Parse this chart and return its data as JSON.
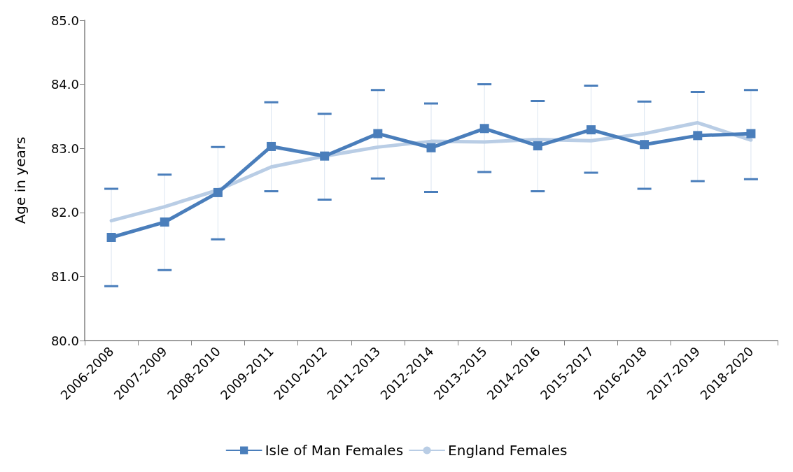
{
  "chart_data": {
    "type": "line",
    "ylabel": "Age in years",
    "categories": [
      "2006-2008",
      "2007-2009",
      "2008-2010",
      "2009-2011",
      "2010-2012",
      "2011-2013",
      "2012-2014",
      "2013-2015",
      "2014-2016",
      "2015-2017",
      "2016-2018",
      "2017-2019",
      "2018-2020"
    ],
    "series": [
      {
        "name": "Isle of Man Females",
        "color": "#4a7ebb",
        "marker": "square",
        "values": [
          81.61,
          81.85,
          82.31,
          83.03,
          82.88,
          83.23,
          83.01,
          83.31,
          83.04,
          83.29,
          83.06,
          83.2,
          83.23
        ],
        "errors": [
          [
            80.85,
            82.37
          ],
          [
            81.1,
            82.59
          ],
          [
            81.58,
            83.02
          ],
          [
            82.33,
            83.72
          ],
          [
            82.2,
            83.54
          ],
          [
            82.53,
            83.91
          ],
          [
            82.32,
            83.7
          ],
          [
            82.63,
            84.0
          ],
          [
            82.33,
            83.74
          ],
          [
            82.62,
            83.98
          ],
          [
            82.37,
            83.73
          ],
          [
            82.49,
            83.88
          ],
          [
            82.52,
            83.91
          ]
        ]
      },
      {
        "name": "England Females",
        "color": "#b9cde5",
        "marker": "none",
        "values": [
          81.87,
          82.09,
          82.35,
          82.71,
          82.88,
          83.02,
          83.11,
          83.1,
          83.14,
          83.12,
          83.23,
          83.4,
          83.13
        ]
      }
    ],
    "ylim": [
      80,
      85
    ],
    "yticks": [
      {
        "value": 80,
        "label": "80.0"
      },
      {
        "value": 81,
        "label": "81.0"
      },
      {
        "value": 82,
        "label": "82.0"
      },
      {
        "value": 83,
        "label": "83.0"
      },
      {
        "value": 84,
        "label": "84.0"
      },
      {
        "value": 85,
        "label": "85.0"
      }
    ],
    "grid": false,
    "legend": "bottom"
  }
}
